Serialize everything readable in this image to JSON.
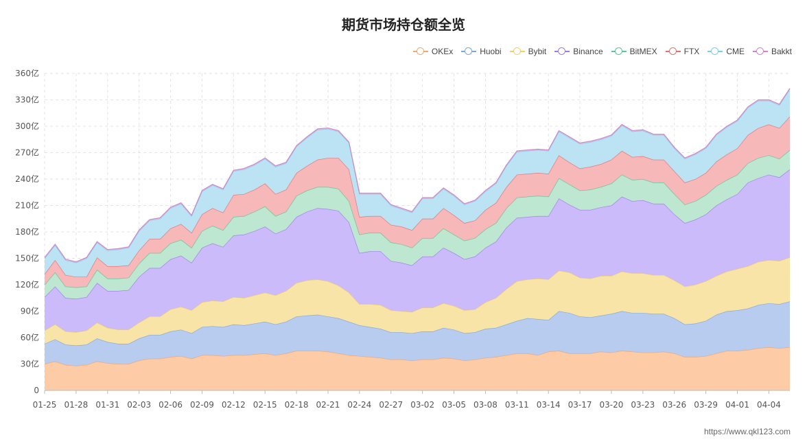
{
  "title": "期货市场持仓额全览",
  "watermark": "https://www.qkl123.com",
  "chart_data": {
    "type": "area",
    "stacked": true,
    "title": "期货市场持仓额全览",
    "xlabel": "",
    "ylabel": "",
    "ylim": [
      0,
      360
    ],
    "y_ticks": [
      "0",
      "30亿",
      "60亿",
      "90亿",
      "120亿",
      "150亿",
      "180亿",
      "210亿",
      "240亿",
      "270亿",
      "300亿",
      "330亿",
      "360亿"
    ],
    "x_tick_labels": [
      "01-25",
      "01-28",
      "01-31",
      "02-03",
      "02-06",
      "02-09",
      "02-12",
      "02-15",
      "02-18",
      "02-21",
      "02-24",
      "02-27",
      "03-02",
      "03-05",
      "03-08",
      "03-11",
      "03-14",
      "03-17",
      "03-20",
      "03-23",
      "03-26",
      "03-29",
      "04-01",
      "04-04"
    ],
    "grid": true,
    "legend_position": "top-right",
    "series": [
      {
        "name": "OKEx",
        "line_color": "#f5a66a",
        "fill_color": "#fdc9a1",
        "values": [
          30,
          33,
          29,
          28,
          29,
          33,
          31,
          30,
          30,
          34,
          36,
          36,
          38,
          39,
          36,
          40,
          40,
          39,
          40,
          40,
          41,
          42,
          40,
          42,
          45,
          45,
          45,
          44,
          42,
          40,
          39,
          38,
          37,
          35,
          35,
          34,
          35,
          35,
          37,
          36,
          34,
          35,
          37,
          38,
          40,
          42,
          42,
          40,
          44,
          45,
          42,
          42,
          42,
          44,
          43,
          45,
          44,
          43,
          43,
          44,
          42,
          38,
          38,
          39,
          42,
          45,
          45,
          46,
          48,
          49,
          48,
          49
        ]
      },
      {
        "name": "Huobi",
        "line_color": "#7ea6e0",
        "fill_color": "#b3c9ee",
        "values": [
          23,
          25,
          23,
          23,
          23,
          26,
          24,
          23,
          23,
          25,
          27,
          27,
          29,
          30,
          29,
          32,
          33,
          33,
          35,
          34,
          35,
          36,
          35,
          36,
          39,
          40,
          41,
          40,
          40,
          38,
          35,
          34,
          33,
          31,
          31,
          31,
          32,
          32,
          34,
          33,
          31,
          31,
          33,
          33,
          35,
          37,
          40,
          41,
          36,
          45,
          46,
          42,
          41,
          41,
          44,
          45,
          44,
          45,
          44,
          43,
          40,
          37,
          38,
          40,
          44,
          45,
          46,
          47,
          49,
          50,
          50,
          52
        ]
      },
      {
        "name": "Bybit",
        "line_color": "#f3cf6a",
        "fill_color": "#f9e3a3",
        "values": [
          15,
          17,
          15,
          15,
          16,
          18,
          16,
          16,
          16,
          18,
          21,
          21,
          25,
          26,
          26,
          28,
          29,
          29,
          31,
          31,
          32,
          33,
          33,
          35,
          38,
          40,
          40,
          40,
          37,
          33,
          24,
          26,
          27,
          25,
          24,
          24,
          27,
          27,
          28,
          27,
          26,
          26,
          30,
          34,
          40,
          45,
          44,
          46,
          46,
          46,
          46,
          44,
          44,
          45,
          43,
          45,
          45,
          45,
          44,
          44,
          43,
          43,
          44,
          45,
          44,
          45,
          47,
          48,
          49,
          49,
          49,
          50
        ]
      },
      {
        "name": "Binance",
        "line_color": "#9c7bea",
        "fill_color": "#c9b7fb",
        "values": [
          38,
          43,
          38,
          38,
          38,
          45,
          42,
          44,
          45,
          52,
          55,
          55,
          57,
          58,
          54,
          62,
          65,
          62,
          70,
          72,
          73,
          75,
          70,
          70,
          75,
          78,
          81,
          82,
          85,
          80,
          58,
          60,
          61,
          56,
          55,
          53,
          58,
          58,
          63,
          60,
          58,
          60,
          62,
          64,
          70,
          72,
          71,
          71,
          72,
          82,
          77,
          77,
          78,
          78,
          80,
          85,
          82,
          83,
          81,
          81,
          75,
          72,
          74,
          76,
          80,
          82,
          85,
          95,
          95,
          97,
          95,
          100
        ]
      },
      {
        "name": "BitMEX",
        "line_color": "#5cc596",
        "fill_color": "#bae6cf",
        "values": [
          14,
          16,
          13,
          13,
          12,
          15,
          14,
          14,
          14,
          15,
          17,
          17,
          18,
          18,
          17,
          19,
          20,
          19,
          21,
          21,
          22,
          23,
          20,
          20,
          24,
          24,
          24,
          25,
          25,
          24,
          21,
          21,
          21,
          21,
          21,
          20,
          21,
          21,
          22,
          21,
          21,
          21,
          21,
          21,
          22,
          23,
          23,
          23,
          22,
          23,
          23,
          22,
          23,
          23,
          25,
          25,
          24,
          24,
          24,
          24,
          23,
          21,
          21,
          22,
          22,
          22,
          22,
          22,
          23,
          22,
          21,
          22
        ]
      },
      {
        "name": "FTX",
        "line_color": "#e86d6d",
        "fill_color": "#f6b4b4",
        "values": [
          12,
          14,
          13,
          12,
          11,
          14,
          14,
          14,
          14,
          15,
          16,
          16,
          17,
          18,
          17,
          19,
          20,
          20,
          25,
          25,
          25,
          26,
          25,
          25,
          26,
          28,
          31,
          33,
          35,
          36,
          20,
          19,
          19,
          20,
          20,
          20,
          22,
          22,
          23,
          22,
          20,
          20,
          22,
          23,
          24,
          26,
          26,
          26,
          26,
          26,
          25,
          25,
          26,
          26,
          27,
          27,
          26,
          26,
          26,
          26,
          26,
          25,
          25,
          25,
          28,
          29,
          30,
          32,
          34,
          35,
          35,
          38
        ]
      },
      {
        "name": "CME",
        "line_color": "#7fcce8",
        "fill_color": "#b7e1f2",
        "values": [
          18,
          17,
          17,
          16,
          21,
          17,
          18,
          19,
          20,
          22,
          21,
          23,
          23,
          23,
          19,
          26,
          26,
          26,
          27,
          28,
          28,
          28,
          31,
          30,
          30,
          32,
          34,
          33,
          30,
          30,
          26,
          25,
          25,
          22,
          20,
          20,
          23,
          23,
          22,
          22,
          21,
          22,
          21,
          22,
          24,
          26,
          26,
          26,
          26,
          27,
          28,
          28,
          28,
          28,
          27,
          29,
          29,
          29,
          28,
          28,
          26,
          27,
          28,
          28,
          30,
          31,
          31,
          31,
          31,
          27,
          26,
          31
        ]
      },
      {
        "name": "Bakkt",
        "line_color": "#d185c9",
        "fill_color": "#e8c1e6",
        "values": [
          1,
          1,
          1,
          1,
          1,
          1,
          1,
          1,
          1,
          1,
          1,
          1,
          1,
          1,
          1,
          1,
          1,
          1,
          1,
          1,
          1,
          1,
          1,
          1,
          1,
          1,
          1,
          1,
          1,
          1,
          1,
          1,
          1,
          1,
          1,
          1,
          1,
          1,
          1,
          1,
          1,
          1,
          1,
          1,
          1,
          1,
          1,
          1,
          1,
          1,
          1,
          1,
          1,
          1,
          1,
          1,
          1,
          1,
          1,
          1,
          1,
          1,
          1,
          1,
          1,
          1,
          1,
          1,
          1,
          1,
          1,
          1
        ]
      }
    ]
  }
}
